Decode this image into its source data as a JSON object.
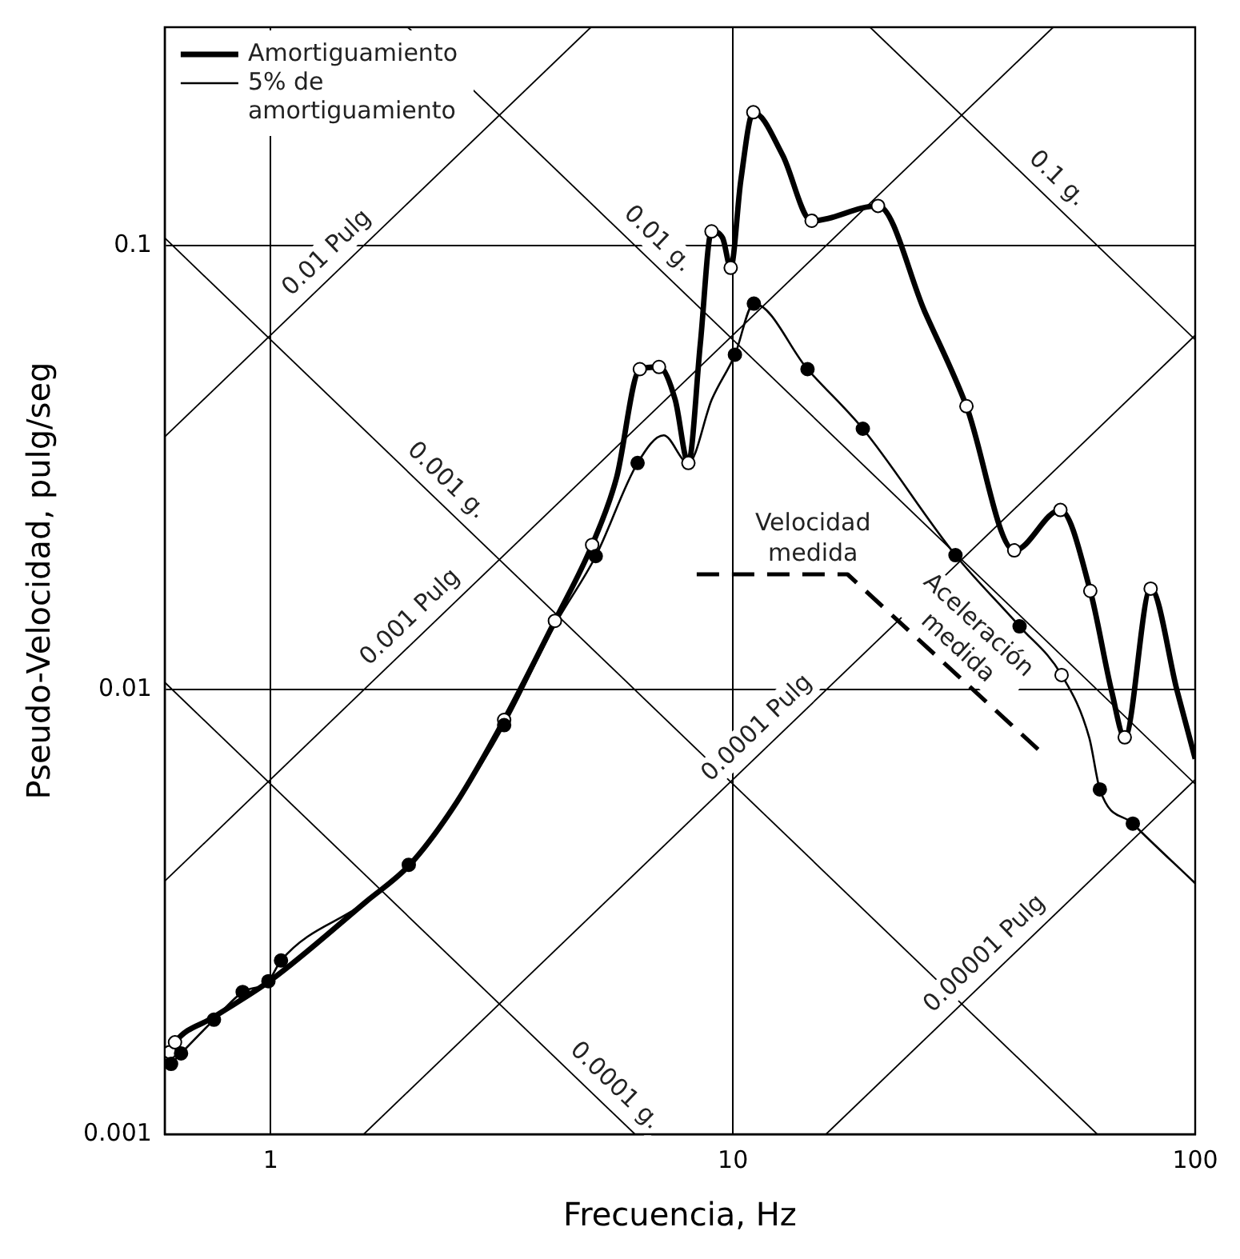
{
  "chart_data": {
    "type": "line",
    "xlabel": "Frecuencia, Hz",
    "ylabel": "Pseudo-Velocidad, pulg/seg",
    "log": "xy",
    "xlim": [
      0.59,
      100
    ],
    "ylim": [
      0.001,
      0.31
    ],
    "xticks": [
      1,
      10,
      100
    ],
    "yticks": [
      0.001,
      0.01,
      0.1
    ],
    "grid": true,
    "legend": "top left",
    "series": [
      {
        "color": "#000000",
        "x": [
          0.59,
          4.93
        ],
        "values": [
          0.0371,
          0.31
        ]
      },
      {
        "color": "#000000",
        "x": [
          0.59,
          49.3
        ],
        "values": [
          0.00371,
          0.31
        ]
      },
      {
        "color": "#000000",
        "x": [
          1.59,
          100
        ],
        "values": [
          0.001,
          0.0628
        ]
      },
      {
        "color": "#000000",
        "x": [
          15.9,
          100
        ],
        "values": [
          0.001,
          0.00628
        ]
      },
      {
        "color": "#000000",
        "x": [
          19.8,
          100
        ],
        "values": [
          0.31,
          0.0614
        ]
      },
      {
        "color": "#000000",
        "x": [
          1.98,
          100
        ],
        "values": [
          0.31,
          0.00614
        ]
      },
      {
        "color": "#000000",
        "x": [
          0.59,
          61.4
        ],
        "values": [
          0.104,
          0.001
        ]
      },
      {
        "color": "#000000",
        "x": [
          0.59,
          6.14
        ],
        "values": [
          0.0104,
          0.001
        ]
      },
      {
        "color": "#000000",
        "line_style": "dashed",
        "x": [
          8.35,
          17.7,
          47.6
        ],
        "values": [
          0.0182,
          0.0182,
          0.00707
        ]
      },
      {
        "name": "Amortiguamiento",
        "color": "#000000",
        "x": [
          0.605,
          0.621,
          0.75,
          1.0,
          1.61,
          2.0,
          2.53,
          3.2,
          4.12,
          4.96,
          5.6,
          6.29,
          6.92,
          7.5,
          8.01,
          8.5,
          8.99,
          9.5,
          9.89,
          10.4,
          11.07,
          12.8,
          14.8,
          20.6,
          26,
          32.0,
          40.6,
          51.1,
          59.3,
          66,
          70.4,
          80.1,
          91.4,
          100
        ],
        "values": [
          0.00153,
          0.00161,
          0.00183,
          0.00222,
          0.00334,
          0.00404,
          0.0056,
          0.00856,
          0.0143,
          0.0212,
          0.03,
          0.0527,
          0.0533,
          0.045,
          0.0324,
          0.06,
          0.1076,
          0.104,
          0.0891,
          0.14,
          0.1995,
          0.16,
          0.1137,
          0.1228,
          0.071,
          0.0435,
          0.0206,
          0.0254,
          0.0167,
          0.0099,
          0.00782,
          0.0169,
          0.00994,
          0.007
        ]
      },
      {
        "name": "5% de amortiguamiento",
        "color": "#000000",
        "x": [
          0.609,
          0.64,
          0.754,
          0.87,
          0.989,
          1.053,
          1.61,
          1.99,
          2.53,
          3.2,
          4.12,
          5.05,
          6.22,
          7.08,
          8.01,
          9.0,
          10.1,
          11.1,
          14.5,
          19.1,
          30.3,
          41.7,
          51.4,
          59,
          62.2,
          73.3,
          100
        ],
        "values": [
          0.00144,
          0.00152,
          0.00181,
          0.00209,
          0.00221,
          0.00246,
          0.00334,
          0.00404,
          0.0056,
          0.00833,
          0.014,
          0.02,
          0.0324,
          0.0374,
          0.0324,
          0.045,
          0.0568,
          0.074,
          0.0527,
          0.0387,
          0.0201,
          0.0139,
          0.0108,
          0.0078,
          0.00597,
          0.005,
          0.00367
        ]
      },
      {
        "type": "scatter",
        "marker": "circle",
        "color": "#ffffff",
        "x": [
          0.605,
          0.621,
          3.2,
          4.12,
          4.96,
          6.29,
          6.92,
          8.01,
          8.99,
          9.89,
          11.07,
          14.8,
          20.6,
          32.0,
          40.6,
          51.1,
          59.3,
          51.4,
          70.4,
          80.1
        ],
        "values": [
          0.00153,
          0.00161,
          0.00856,
          0.0143,
          0.0212,
          0.0527,
          0.0533,
          0.0324,
          0.1076,
          0.0891,
          0.1995,
          0.1137,
          0.1228,
          0.0435,
          0.0206,
          0.0254,
          0.0167,
          0.0108,
          0.00782,
          0.0169
        ]
      },
      {
        "type": "scatter",
        "marker": "circle",
        "color": "#000000",
        "x": [
          0.609,
          0.64,
          0.754,
          0.87,
          0.989,
          1.053,
          1.99,
          3.2,
          5.05,
          6.22,
          10.1,
          11.1,
          14.5,
          19.1,
          30.3,
          41.7,
          62.2,
          73.3
        ],
        "values": [
          0.00144,
          0.00152,
          0.00181,
          0.00209,
          0.00221,
          0.00246,
          0.00404,
          0.00833,
          0.02,
          0.0324,
          0.0568,
          0.074,
          0.0527,
          0.0387,
          0.0201,
          0.0139,
          0.00597,
          0.005
        ]
      }
    ],
    "annotations": [
      {
        "text": "0.01 Pulg",
        "x": 1.42,
        "y": 0.0892
      },
      {
        "text": "0.001 Pulg",
        "x": 2.15,
        "y": 0.0135
      },
      {
        "text": "0.0001 Pulg",
        "x": 12.1,
        "y": 0.0076
      },
      {
        "text": "0.00001 Pulg",
        "x": 37.6,
        "y": 0.00236
      },
      {
        "text": "0.1 g.",
        "x": 46.9,
        "y": 0.131
      },
      {
        "text": "0.01 g.",
        "x": 6.41,
        "y": 0.0958
      },
      {
        "text": "0.001 g.",
        "x": 2.24,
        "y": 0.0274
      },
      {
        "text": "0.0001 g.",
        "x": 5.18,
        "y": 0.00119
      },
      {
        "text": "Velocidad\nmedida",
        "x": 14.9,
        "y": 0.0182
      },
      {
        "text": "Aceleración\nmedida",
        "x": 28.6,
        "y": 0.0115
      }
    ]
  }
}
